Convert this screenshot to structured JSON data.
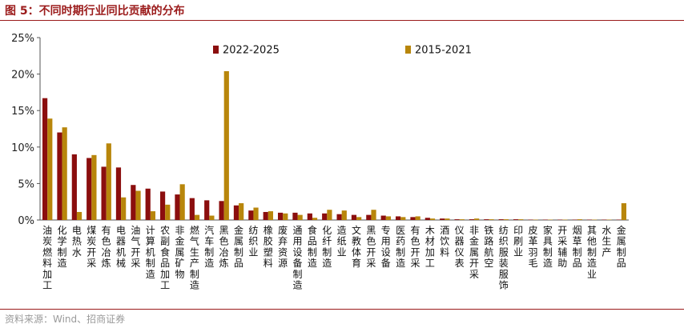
{
  "header": {
    "title": "图 5：不同时期行业同比贡献的分布"
  },
  "footer": {
    "source": "资料来源：Wind、招商证券"
  },
  "chart_data": {
    "type": "bar",
    "ylim": [
      0,
      25
    ],
    "yticks": [
      "0%",
      "5%",
      "10%",
      "15%",
      "20%",
      "25%"
    ],
    "legend_position": "top",
    "colors": {
      "2022-2025": "#8b0e0e",
      "2015-2021": "#b8860b"
    },
    "categories": [
      "油炭燃料加工",
      "化学制造",
      "电热水",
      "煤炭开采",
      "有色冶炼",
      "电器机械",
      "油气开采",
      "计算机制造",
      "农副食品加工",
      "非金属矿物",
      "燃气生产制造",
      "汽车制造",
      "黑色冶炼",
      "金属制品",
      "纺织业",
      "橡胶塑料",
      "废弃资源",
      "通用设备制造",
      "食品制造",
      "化纤制造",
      "造纸业",
      "文教体育",
      "黑色开采",
      "专用设备",
      "医药制造",
      "有色开采",
      "木材加工",
      "酒饮料",
      "仪器仪表",
      "非金属开采",
      "铁路航空",
      "纺织服装服饰",
      "印刷业",
      "皮革羽毛",
      "家具制造",
      "开采辅助",
      "烟草制品",
      "其他制造业",
      "水生产",
      "金属制品"
    ],
    "series": [
      {
        "name": "2022-2025",
        "values": [
          16.7,
          12.0,
          9.0,
          8.5,
          7.3,
          7.2,
          4.8,
          4.3,
          3.9,
          3.5,
          3.0,
          2.7,
          2.6,
          2.0,
          1.3,
          1.1,
          1.0,
          1.0,
          0.9,
          0.9,
          0.8,
          0.7,
          0.7,
          0.6,
          0.5,
          0.4,
          0.3,
          0.2,
          0.1,
          0.1,
          0.1,
          0.1,
          0.1,
          0.05,
          0.05,
          0.05,
          0.05,
          0.05,
          0.05,
          0.05
        ]
      },
      {
        "name": "2015-2021",
        "values": [
          13.9,
          12.7,
          1.1,
          8.9,
          10.5,
          3.1,
          4.0,
          1.2,
          2.1,
          4.9,
          0.7,
          0.6,
          20.4,
          2.3,
          1.7,
          1.2,
          0.9,
          0.7,
          0.3,
          1.4,
          1.3,
          0.4,
          1.4,
          0.5,
          0.4,
          0.5,
          0.2,
          0.2,
          0.1,
          0.2,
          0.1,
          0.1,
          0.1,
          0.05,
          0.05,
          0.05,
          0.1,
          0.05,
          0.05,
          2.3
        ]
      }
    ]
  }
}
